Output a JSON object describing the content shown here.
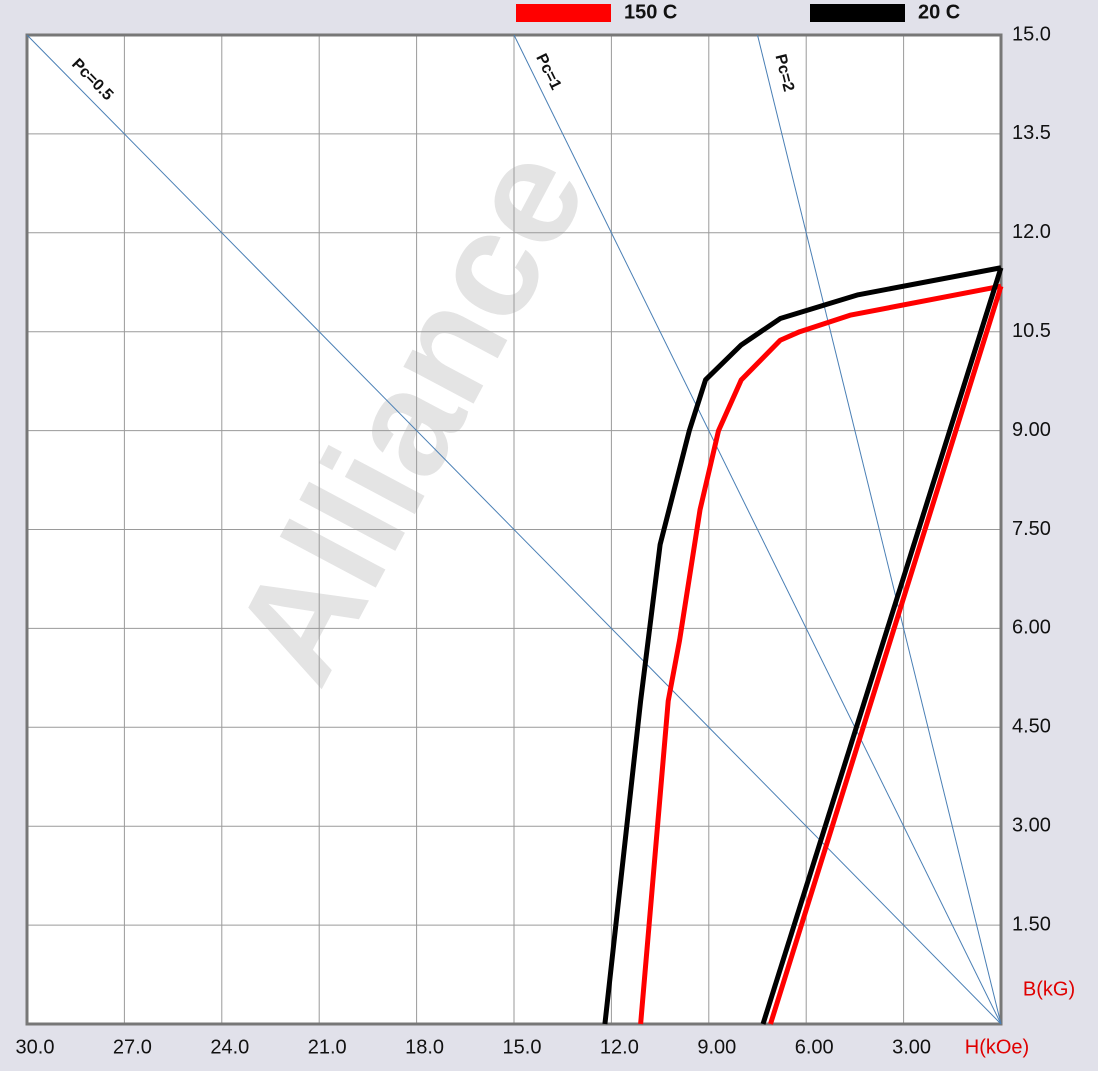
{
  "chart_data": {
    "type": "line",
    "watermark": "Alliance",
    "xlabel": "H(kOe)",
    "ylabel": "B(kG)",
    "xlim": [
      30,
      0
    ],
    "ylim": [
      0,
      15
    ],
    "xticks": [
      {
        "value": 30,
        "label": "30.0"
      },
      {
        "value": 27,
        "label": "27.0"
      },
      {
        "value": 24,
        "label": "24.0"
      },
      {
        "value": 21,
        "label": "21.0"
      },
      {
        "value": 18,
        "label": "18.0"
      },
      {
        "value": 15,
        "label": "15.0"
      },
      {
        "value": 12,
        "label": "12.0"
      },
      {
        "value": 9,
        "label": "9.00"
      },
      {
        "value": 6,
        "label": "6.00"
      },
      {
        "value": 3,
        "label": "3.00"
      }
    ],
    "yticks": [
      {
        "value": 15,
        "label": "15.0"
      },
      {
        "value": 13.5,
        "label": "13.5"
      },
      {
        "value": 12,
        "label": "12.0"
      },
      {
        "value": 10.5,
        "label": "10.5"
      },
      {
        "value": 9,
        "label": "9.00"
      },
      {
        "value": 7.5,
        "label": "7.50"
      },
      {
        "value": 6,
        "label": "6.00"
      },
      {
        "value": 4.5,
        "label": "4.50"
      },
      {
        "value": 3,
        "label": "3.00"
      },
      {
        "value": 1.5,
        "label": "1.50"
      }
    ],
    "grid": true,
    "series": [
      {
        "name": "150 C",
        "color": "#ff0000",
        "curves": [
          {
            "x": [
              0,
              4.65,
              6.2,
              6.8,
              8.0,
              8.7,
              9.27,
              9.9,
              10.25,
              11.1
            ],
            "values": [
              11.19,
              10.75,
              10.5,
              10.37,
              9.77,
              9.0,
              7.8,
              5.82,
              4.9,
              0
            ]
          },
          {
            "x": [
              0,
              7.1
            ],
            "values": [
              11.19,
              0
            ]
          }
        ]
      },
      {
        "name": "20 C",
        "color": "#000000",
        "curves": [
          {
            "x": [
              0,
              4.4,
              6.8,
              8.0,
              9.1,
              9.6,
              10.5,
              11.1,
              12.2
            ],
            "values": [
              11.47,
              11.06,
              10.7,
              10.3,
              9.77,
              9.0,
              7.27,
              4.9,
              0
            ]
          },
          {
            "x": [
              0,
              7.33
            ],
            "values": [
              11.47,
              0
            ]
          }
        ]
      }
    ],
    "load_lines": [
      {
        "label": "Pc=0.5",
        "color": "#4a7fb5",
        "x": [
          30,
          0
        ],
        "values": [
          15,
          0
        ]
      },
      {
        "label": "Pc=1",
        "color": "#4a7fb5",
        "x": [
          15,
          0
        ],
        "values": [
          15,
          0
        ]
      },
      {
        "label": "Pc=2",
        "color": "#4a7fb5",
        "x": [
          7.5,
          0
        ],
        "values": [
          15,
          0
        ]
      }
    ]
  }
}
